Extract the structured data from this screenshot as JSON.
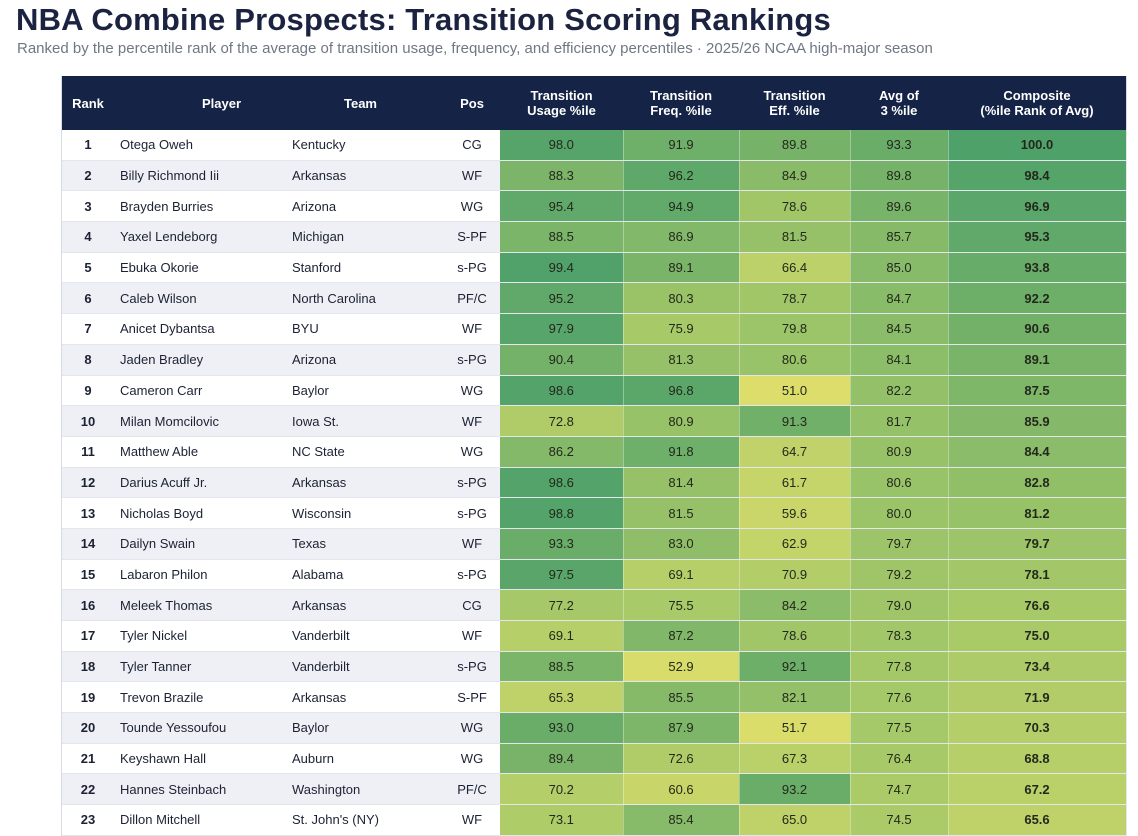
{
  "header": {
    "title": "NBA Combine Prospects: Transition Scoring Rankings",
    "subtitle": "Ranked by the percentile rank of the average of transition usage, frequency, and efficiency percentiles · 2025/26 NCAA high-major season"
  },
  "columns": [
    {
      "key": "rank",
      "line1": "Rank",
      "line2": ""
    },
    {
      "key": "player",
      "line1": "Player",
      "line2": ""
    },
    {
      "key": "team",
      "line1": "Team",
      "line2": ""
    },
    {
      "key": "pos",
      "line1": "Pos",
      "line2": ""
    },
    {
      "key": "usage",
      "line1": "Transition",
      "line2": "Usage %ile"
    },
    {
      "key": "freq",
      "line1": "Transition",
      "line2": "Freq. %ile"
    },
    {
      "key": "eff",
      "line1": "Transition",
      "line2": "Eff. %ile"
    },
    {
      "key": "avg",
      "line1": "Avg of",
      "line2": "3 %ile"
    },
    {
      "key": "comp",
      "line1": "Composite",
      "line2": "(%ile Rank of Avg)"
    }
  ],
  "colors": {
    "header_bg": "#142346",
    "heat_low": "#dede6a",
    "heat_high": "#4fa16a"
  },
  "chart_data": {
    "type": "table",
    "rows": [
      {
        "rank": "1",
        "player": "Otega Oweh",
        "team": "Kentucky",
        "pos": "CG",
        "usage": 98.0,
        "freq": 91.9,
        "eff": 89.8,
        "avg": 93.3,
        "comp": 100.0
      },
      {
        "rank": "2",
        "player": "Billy Richmond Iii",
        "team": "Arkansas",
        "pos": "WF",
        "usage": 88.3,
        "freq": 96.2,
        "eff": 84.9,
        "avg": 89.8,
        "comp": 98.4
      },
      {
        "rank": "3",
        "player": "Brayden Burries",
        "team": "Arizona",
        "pos": "WG",
        "usage": 95.4,
        "freq": 94.9,
        "eff": 78.6,
        "avg": 89.6,
        "comp": 96.9
      },
      {
        "rank": "4",
        "player": "Yaxel Lendeborg",
        "team": "Michigan",
        "pos": "S-PF",
        "usage": 88.5,
        "freq": 86.9,
        "eff": 81.5,
        "avg": 85.7,
        "comp": 95.3
      },
      {
        "rank": "5",
        "player": "Ebuka Okorie",
        "team": "Stanford",
        "pos": "s-PG",
        "usage": 99.4,
        "freq": 89.1,
        "eff": 66.4,
        "avg": 85.0,
        "comp": 93.8
      },
      {
        "rank": "6",
        "player": "Caleb Wilson",
        "team": "North Carolina",
        "pos": "PF/C",
        "usage": 95.2,
        "freq": 80.3,
        "eff": 78.7,
        "avg": 84.7,
        "comp": 92.2
      },
      {
        "rank": "7",
        "player": "Anicet Dybantsa",
        "team": "BYU",
        "pos": "WF",
        "usage": 97.9,
        "freq": 75.9,
        "eff": 79.8,
        "avg": 84.5,
        "comp": 90.6
      },
      {
        "rank": "8",
        "player": "Jaden Bradley",
        "team": "Arizona",
        "pos": "s-PG",
        "usage": 90.4,
        "freq": 81.3,
        "eff": 80.6,
        "avg": 84.1,
        "comp": 89.1
      },
      {
        "rank": "9",
        "player": "Cameron Carr",
        "team": "Baylor",
        "pos": "WG",
        "usage": 98.6,
        "freq": 96.8,
        "eff": 51.0,
        "avg": 82.2,
        "comp": 87.5
      },
      {
        "rank": "10",
        "player": "Milan Momcilovic",
        "team": "Iowa St.",
        "pos": "WF",
        "usage": 72.8,
        "freq": 80.9,
        "eff": 91.3,
        "avg": 81.7,
        "comp": 85.9
      },
      {
        "rank": "11",
        "player": "Matthew Able",
        "team": "NC State",
        "pos": "WG",
        "usage": 86.2,
        "freq": 91.8,
        "eff": 64.7,
        "avg": 80.9,
        "comp": 84.4
      },
      {
        "rank": "12",
        "player": "Darius Acuff Jr.",
        "team": "Arkansas",
        "pos": "s-PG",
        "usage": 98.6,
        "freq": 81.4,
        "eff": 61.7,
        "avg": 80.6,
        "comp": 82.8
      },
      {
        "rank": "13",
        "player": "Nicholas Boyd",
        "team": "Wisconsin",
        "pos": "s-PG",
        "usage": 98.8,
        "freq": 81.5,
        "eff": 59.6,
        "avg": 80.0,
        "comp": 81.2
      },
      {
        "rank": "14",
        "player": "Dailyn Swain",
        "team": "Texas",
        "pos": "WF",
        "usage": 93.3,
        "freq": 83.0,
        "eff": 62.9,
        "avg": 79.7,
        "comp": 79.7
      },
      {
        "rank": "15",
        "player": "Labaron Philon",
        "team": "Alabama",
        "pos": "s-PG",
        "usage": 97.5,
        "freq": 69.1,
        "eff": 70.9,
        "avg": 79.2,
        "comp": 78.1
      },
      {
        "rank": "16",
        "player": "Meleek Thomas",
        "team": "Arkansas",
        "pos": "CG",
        "usage": 77.2,
        "freq": 75.5,
        "eff": 84.2,
        "avg": 79.0,
        "comp": 76.6
      },
      {
        "rank": "17",
        "player": "Tyler Nickel",
        "team": "Vanderbilt",
        "pos": "WF",
        "usage": 69.1,
        "freq": 87.2,
        "eff": 78.6,
        "avg": 78.3,
        "comp": 75.0
      },
      {
        "rank": "18",
        "player": "Tyler Tanner",
        "team": "Vanderbilt",
        "pos": "s-PG",
        "usage": 88.5,
        "freq": 52.9,
        "eff": 92.1,
        "avg": 77.8,
        "comp": 73.4
      },
      {
        "rank": "19",
        "player": "Trevon Brazile",
        "team": "Arkansas",
        "pos": "S-PF",
        "usage": 65.3,
        "freq": 85.5,
        "eff": 82.1,
        "avg": 77.6,
        "comp": 71.9
      },
      {
        "rank": "20",
        "player": "Tounde Yessoufou",
        "team": "Baylor",
        "pos": "WG",
        "usage": 93.0,
        "freq": 87.9,
        "eff": 51.7,
        "avg": 77.5,
        "comp": 70.3
      },
      {
        "rank": "21",
        "player": "Keyshawn Hall",
        "team": "Auburn",
        "pos": "WG",
        "usage": 89.4,
        "freq": 72.6,
        "eff": 67.3,
        "avg": 76.4,
        "comp": 68.8
      },
      {
        "rank": "22",
        "player": "Hannes Steinbach",
        "team": "Washington",
        "pos": "PF/C",
        "usage": 70.2,
        "freq": 60.6,
        "eff": 93.2,
        "avg": 74.7,
        "comp": 67.2
      },
      {
        "rank": "23",
        "player": "Dillon Mitchell",
        "team": "St. John's (NY)",
        "pos": "WF",
        "usage": 73.1,
        "freq": 85.4,
        "eff": 65.0,
        "avg": 74.5,
        "comp": 65.6
      }
    ]
  }
}
